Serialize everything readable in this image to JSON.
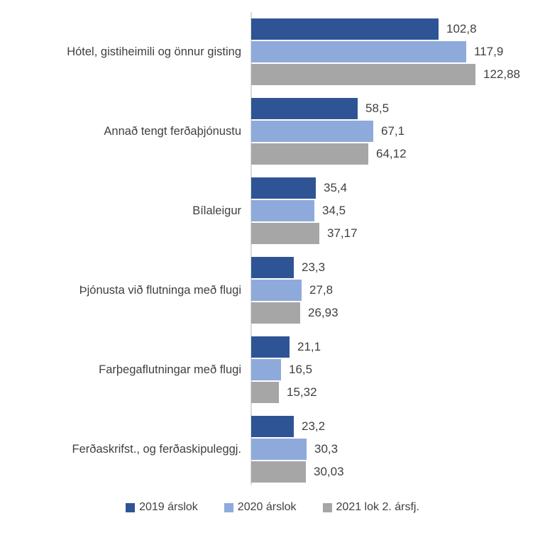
{
  "chart_data": {
    "type": "bar",
    "orientation": "horizontal",
    "title": "",
    "xlabel": "",
    "ylabel": "",
    "grid": false,
    "legend_position": "bottom",
    "xlim": [
      0,
      130
    ],
    "background_color": "#FFFFFF",
    "axis_color": "#D9D9D9",
    "text_color": "#404040",
    "categories": [
      "Hótel, gistiheimili og önnur gisting",
      "Annað tengt ferðaþjónustu",
      "Bílaleigur",
      "Þjónusta við flutninga með flugi",
      "Farþegaflutningar með flugi",
      "Ferðaskrifst., og ferðaskipuleggj."
    ],
    "series": [
      {
        "name": "2019 árslok",
        "color": "#2F5496",
        "values": [
          102.8,
          58.5,
          35.4,
          23.3,
          21.1,
          23.2
        ],
        "labels": [
          "102,8",
          "58,5",
          "35,4",
          "23,3",
          "21,1",
          "23,2"
        ]
      },
      {
        "name": "2020 árslok",
        "color": "#8EAADB",
        "values": [
          117.9,
          67.1,
          34.5,
          27.8,
          16.5,
          30.3
        ],
        "labels": [
          "117,9",
          "67,1",
          "34,5",
          "27,8",
          "16,5",
          "30,3"
        ]
      },
      {
        "name": "2021 lok 2. ársfj.",
        "color": "#A6A6A6",
        "values": [
          122.88,
          64.12,
          37.17,
          26.93,
          15.32,
          30.03
        ],
        "labels": [
          "122,88",
          "64,12",
          "37,17",
          "26,93",
          "15,32",
          "30,03"
        ]
      }
    ]
  }
}
